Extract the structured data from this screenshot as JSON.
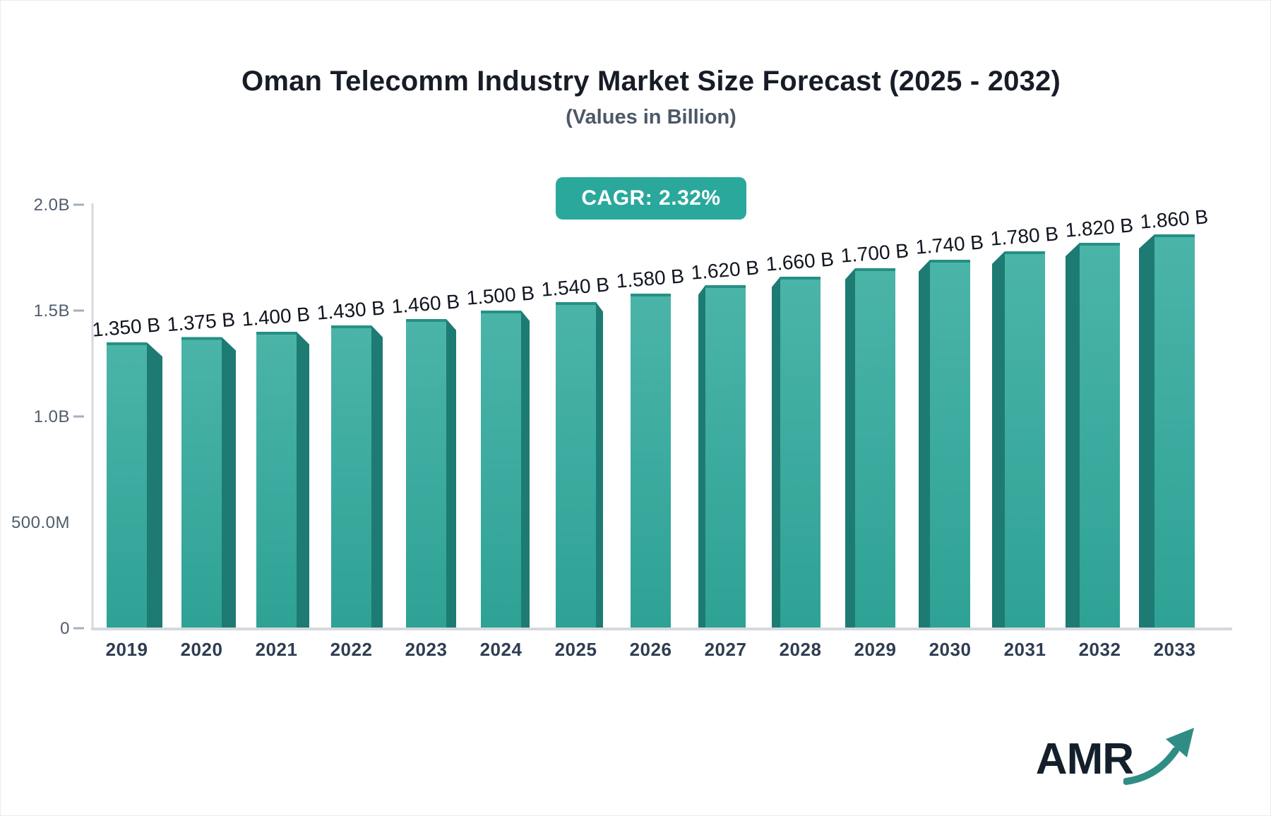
{
  "badge": {
    "label": "CAGR: 2.32%"
  },
  "logo": {
    "text": "AMR"
  },
  "colors": {
    "bar_front_top": "#4bb4a9",
    "bar_front_bottom": "#2ea295",
    "bar_side": "#1d7b73",
    "bar_top_strip": "#259083",
    "badge_bg": "#2ba89c",
    "axis_line": "#d5d8df",
    "tick_dash": "#a8aeb9",
    "value_label": "#10151f",
    "year_label": "#2f3d52",
    "ytick_label": "#505c6e",
    "subtitle_text": "#4d5866",
    "title_text": "#171c27",
    "logo_text": "#13202c",
    "logo_arrow": "#2f8d85"
  },
  "chart_data": {
    "type": "bar",
    "title": "Oman Telecomm Industry Market Size Forecast (2025 - 2032)",
    "subtitle": "(Values in Billion)",
    "categories": [
      "2019",
      "2020",
      "2021",
      "2022",
      "2023",
      "2024",
      "2025",
      "2026",
      "2027",
      "2028",
      "2029",
      "2030",
      "2031",
      "2032",
      "2033"
    ],
    "values": [
      1.35,
      1.375,
      1.4,
      1.43,
      1.46,
      1.5,
      1.54,
      1.58,
      1.62,
      1.66,
      1.7,
      1.74,
      1.78,
      1.82,
      1.86
    ],
    "value_labels": [
      "1.350 B",
      "1.375 B",
      "1.400 B",
      "1.430 B",
      "1.460 B",
      "1.500 B",
      "1.540 B",
      "1.580 B",
      "1.620 B",
      "1.660 B",
      "1.700 B",
      "1.740 B",
      "1.780 B",
      "1.820 B",
      "1.860 B"
    ],
    "xlabel": "",
    "ylabel": "",
    "ylim": [
      0,
      2.0
    ],
    "yticks": [
      {
        "label": "2.0B",
        "value": 2.0,
        "dash": true
      },
      {
        "label": "1.5B",
        "value": 1.5,
        "dash": true
      },
      {
        "label": "1.0B",
        "value": 1.0,
        "dash": true
      },
      {
        "label": "500.0M",
        "value": 0.5,
        "dash": false
      },
      {
        "label": "0",
        "value": 0.0,
        "dash": true
      }
    ],
    "grid": false,
    "legend": "none",
    "style": "3d-perspective-bars"
  }
}
